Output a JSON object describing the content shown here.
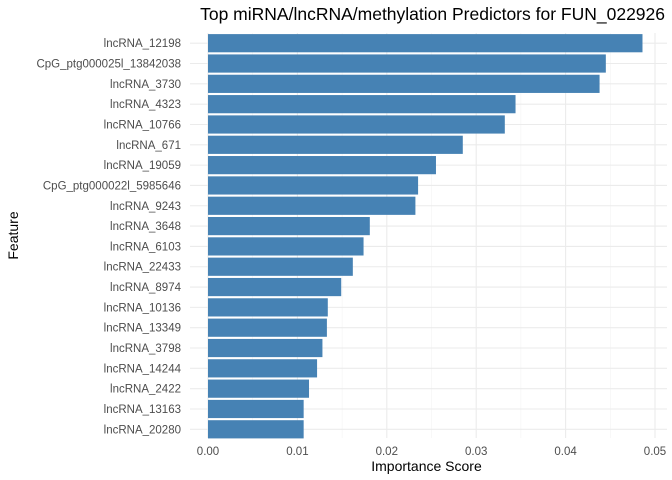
{
  "chart_data": {
    "type": "bar",
    "orientation": "horizontal",
    "title": "Top miRNA/lncRNA/methylation Predictors for FUN_022926",
    "xlabel": "Importance Score",
    "ylabel": "Feature",
    "xlim": [
      0,
      0.05
    ],
    "x_ticks": [
      "0.00",
      "0.01",
      "0.02",
      "0.03",
      "0.04",
      "0.05"
    ],
    "grid": true,
    "bar_color": "#4682B4",
    "categories": [
      "lncRNA_12198",
      "CpG_ptg000025l_13842038",
      "lncRNA_3730",
      "lncRNA_4323",
      "lncRNA_10766",
      "lncRNA_671",
      "lncRNA_19059",
      "CpG_ptg000022l_5985646",
      "lncRNA_9243",
      "lncRNA_3648",
      "lncRNA_6103",
      "lncRNA_22433",
      "lncRNA_8974",
      "lncRNA_10136",
      "lncRNA_13349",
      "lncRNA_3798",
      "lncRNA_14244",
      "lncRNA_2422",
      "lncRNA_13163",
      "lncRNA_20280"
    ],
    "values": [
      0.0486,
      0.0445,
      0.0438,
      0.0344,
      0.0332,
      0.0285,
      0.0255,
      0.0235,
      0.0232,
      0.0181,
      0.0174,
      0.0162,
      0.0149,
      0.0134,
      0.0133,
      0.0128,
      0.0122,
      0.0113,
      0.0107,
      0.0107
    ]
  }
}
